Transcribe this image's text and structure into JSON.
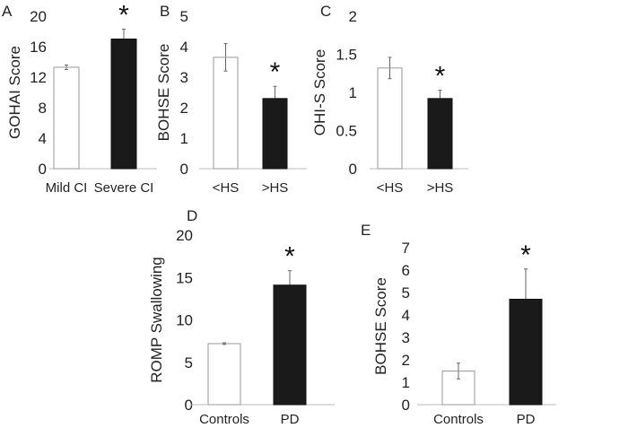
{
  "chart_data": [
    {
      "type": "bar",
      "panel": "A",
      "ylabel": "GOHAI Score",
      "ylim": [
        0,
        20
      ],
      "yticks": [
        0,
        4,
        8,
        12,
        16,
        20
      ],
      "categories": [
        "Mild CI",
        "Severe CI"
      ],
      "values": [
        13.3,
        17.0
      ],
      "errors": [
        0.3,
        1.3
      ],
      "colors": [
        "#ffffff",
        "#1a1a1a"
      ],
      "significance": [
        "",
        "*"
      ]
    },
    {
      "type": "bar",
      "panel": "B",
      "ylabel": "BOHSE Score",
      "ylim": [
        0,
        5
      ],
      "yticks": [
        0,
        1,
        2,
        3,
        4,
        5
      ],
      "categories": [
        "<HS",
        ">HS"
      ],
      "values": [
        3.65,
        2.3
      ],
      "errors": [
        0.45,
        0.4
      ],
      "colors": [
        "#ffffff",
        "#1a1a1a"
      ],
      "significance": [
        "",
        "*"
      ]
    },
    {
      "type": "bar",
      "panel": "C",
      "ylabel": "OHI-S Score",
      "ylim": [
        0,
        2
      ],
      "yticks": [
        "0",
        "0.5",
        "1",
        "1.5",
        "2"
      ],
      "categories": [
        "<HS",
        ">HS"
      ],
      "values": [
        1.32,
        0.92
      ],
      "errors": [
        0.14,
        0.11
      ],
      "colors": [
        "#ffffff",
        "#1a1a1a"
      ],
      "significance": [
        "",
        "*"
      ]
    },
    {
      "type": "bar",
      "panel": "D",
      "ylabel": "ROMP Swallowing",
      "ylim": [
        0,
        20
      ],
      "yticks": [
        0,
        5,
        10,
        15,
        20
      ],
      "categories": [
        "Controls",
        "PD"
      ],
      "values": [
        7.2,
        14.1
      ],
      "errors": [
        0.1,
        1.7
      ],
      "colors": [
        "#ffffff",
        "#1a1a1a"
      ],
      "significance": [
        "",
        "*"
      ]
    },
    {
      "type": "bar",
      "panel": "E",
      "ylabel": "BOHSE Score",
      "ylim": [
        0,
        7
      ],
      "yticks": [
        0,
        1,
        2,
        3,
        4,
        5,
        6,
        7
      ],
      "categories": [
        "Controls",
        "PD"
      ],
      "values": [
        1.5,
        4.7
      ],
      "errors": [
        0.35,
        1.35
      ],
      "colors": [
        "#ffffff",
        "#1a1a1a"
      ],
      "significance": [
        "",
        "*"
      ]
    }
  ]
}
